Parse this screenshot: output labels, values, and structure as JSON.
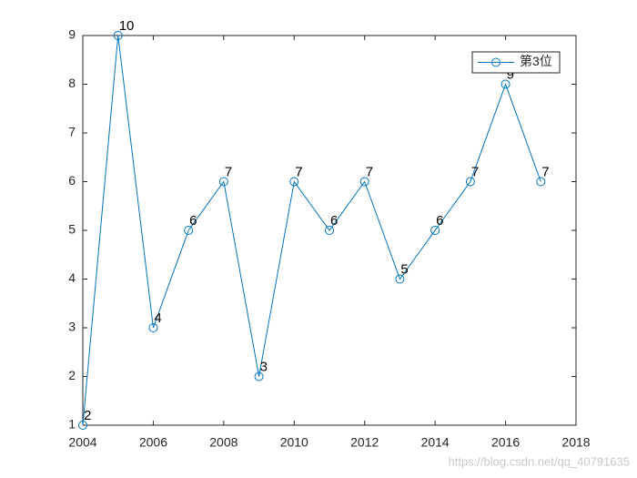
{
  "chart_data": {
    "type": "line",
    "x": [
      2004,
      2005,
      2006,
      2007,
      2008,
      2009,
      2010,
      2011,
      2012,
      2013,
      2014,
      2015,
      2016,
      2017
    ],
    "series": [
      {
        "name": "第3位",
        "color": "#0072bd",
        "values": [
          1,
          9,
          3,
          5,
          6,
          2,
          6,
          5,
          6,
          4,
          5,
          6,
          8,
          6
        ]
      }
    ],
    "annotations": [
      2,
      10,
      4,
      6,
      7,
      3,
      7,
      6,
      7,
      5,
      6,
      7,
      9,
      7
    ],
    "xlim": [
      2004,
      2018
    ],
    "xticks": [
      2004,
      2006,
      2008,
      2010,
      2012,
      2014,
      2016,
      2018
    ],
    "ylim": [
      1,
      9
    ],
    "yticks": [
      1,
      2,
      3,
      4,
      5,
      6,
      7,
      8,
      9
    ],
    "legend": "top-right",
    "grid": false,
    "watermark": "https://blog.csdn.net/qq_40791635"
  }
}
